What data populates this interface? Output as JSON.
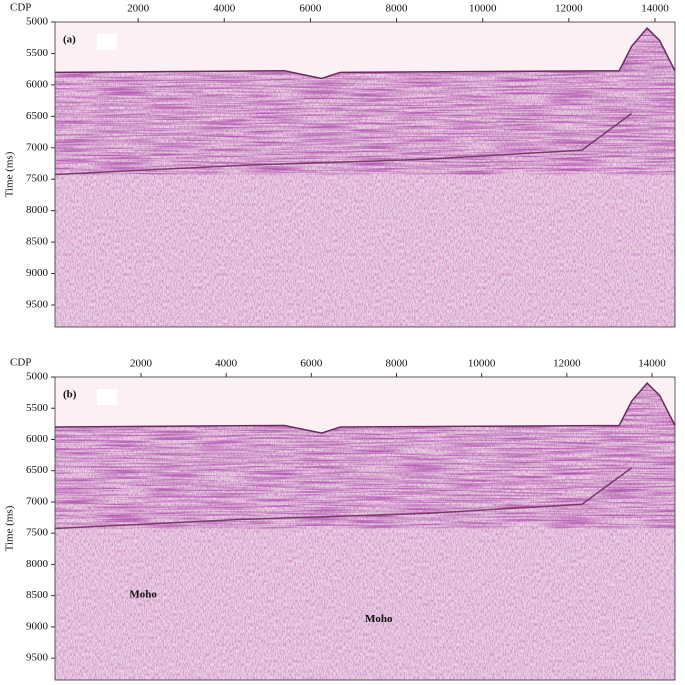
{
  "chart_data": [
    {
      "type": "image",
      "label": "(a)",
      "x_label": "CDP",
      "y_label": "Time (ms)",
      "xlim": [
        70,
        14465
      ],
      "xticks": [
        2000,
        4000,
        6000,
        8000,
        10000,
        12000,
        14000
      ],
      "ylim": [
        5000,
        9850
      ],
      "yticks": [
        5000,
        5500,
        6000,
        6500,
        7000,
        7500,
        8000,
        8500,
        9000,
        9500
      ],
      "annotations": []
    },
    {
      "type": "image",
      "label": "(b)",
      "x_label": "CDP",
      "y_label": "Time (ms)",
      "xlim": [
        -20,
        14540
      ],
      "xticks": [
        2000,
        4000,
        6000,
        8000,
        10000,
        12000,
        14000
      ],
      "ylim": [
        5000,
        9850
      ],
      "yticks": [
        5000,
        5500,
        6000,
        6500,
        7000,
        7500,
        8000,
        8500,
        9000,
        9500
      ],
      "annotations": [
        "Moho",
        "Moho"
      ]
    }
  ]
}
